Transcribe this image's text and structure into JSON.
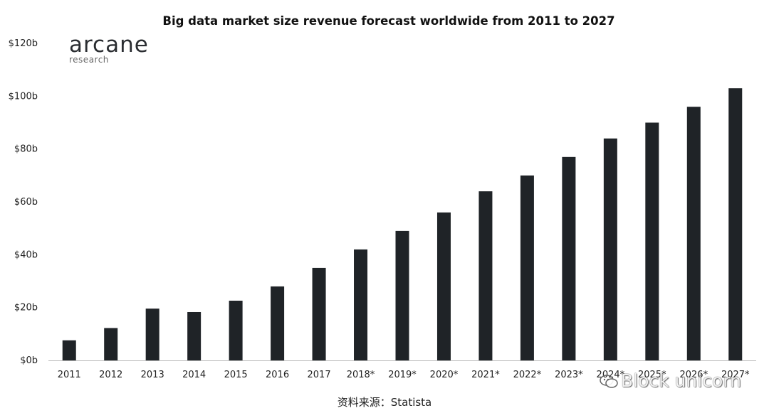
{
  "title": "Big data market size revenue forecast worldwide from 2011 to 2027",
  "logo": {
    "main": "arcane",
    "sub": "research"
  },
  "source": "资料来源：Statista",
  "watermark": "Block unicorn",
  "colors": {
    "bar": "#1f2327",
    "axis": "#bbbbbb",
    "text": "#222222"
  },
  "chart_data": {
    "type": "bar",
    "title": "Big data market size revenue forecast worldwide from 2011 to 2027",
    "categories": [
      "2011",
      "2012",
      "2013",
      "2014",
      "2015",
      "2016",
      "2017",
      "2018*",
      "2019*",
      "2020*",
      "2021*",
      "2022*",
      "2023*",
      "2024*",
      "2025*",
      "2026*",
      "2027*"
    ],
    "values": [
      7.6,
      12.25,
      19.6,
      18.3,
      22.6,
      28,
      35,
      42,
      49,
      56,
      64,
      70,
      77,
      84,
      90,
      96,
      103
    ],
    "ylim": [
      0,
      120
    ],
    "yticks": [
      0,
      20,
      40,
      60,
      80,
      100,
      120
    ],
    "ytick_labels": [
      "$0b",
      "$20b",
      "$40b",
      "$60b",
      "$80b",
      "$100b",
      "$120b"
    ],
    "xlabel": "",
    "ylabel": "",
    "grid": false,
    "legend": "none"
  }
}
